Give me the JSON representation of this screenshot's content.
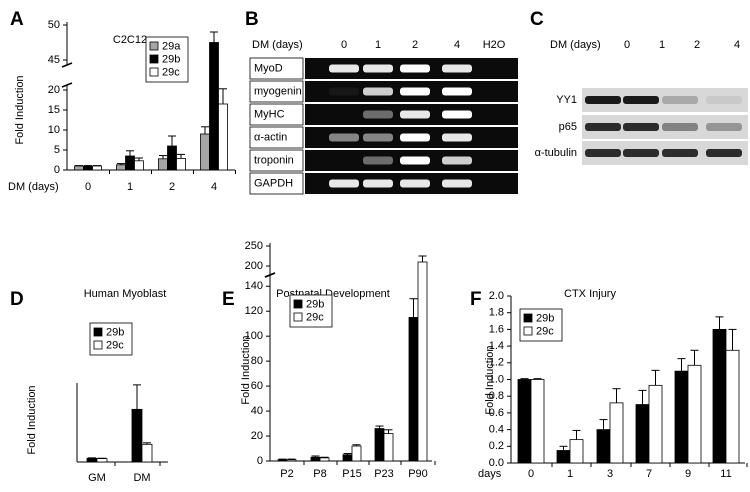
{
  "chart_data": [
    {
      "type": "bar",
      "panel": "A",
      "title": "C2C12",
      "ylabel": "Fold Induction",
      "xlabel": "DM (days)",
      "categories": [
        "0",
        "1",
        "2",
        "4"
      ],
      "ylim": [
        0,
        50
      ],
      "ybreak": [
        20,
        45
      ],
      "yticks": [
        0,
        5,
        10,
        15,
        20,
        45,
        50
      ],
      "series": [
        {
          "name": "29a",
          "color": "#a6a6a6",
          "values": [
            1,
            1.3,
            2.8,
            9
          ],
          "errors": [
            0.1,
            0.3,
            0.8,
            1.8
          ]
        },
        {
          "name": "29b",
          "color": "#000000",
          "values": [
            1,
            3.5,
            6,
            47.5
          ],
          "errors": [
            0.1,
            1.3,
            2.5,
            1.5
          ]
        },
        {
          "name": "29c",
          "color": "#ffffff",
          "values": [
            1,
            2.3,
            2.9,
            16.5
          ],
          "errors": [
            0.1,
            0.7,
            1,
            4.5
          ]
        }
      ]
    },
    {
      "type": "bar",
      "panel": "D",
      "title": "Human Myoblast",
      "ylabel": "Fold Induction",
      "categories": [
        "GM",
        "DM"
      ],
      "ylim": [
        0,
        21
      ],
      "series": [
        {
          "name": "29b",
          "color": "#000000",
          "values": [
            1,
            14
          ],
          "errors": [
            0.1,
            6.5
          ]
        },
        {
          "name": "29c",
          "color": "#ffffff",
          "values": [
            0.9,
            4.7
          ],
          "errors": [
            0.1,
            0.4
          ]
        }
      ]
    },
    {
      "type": "bar",
      "panel": "E",
      "title": "Postnatal Development",
      "ylabel": "Fold Induction",
      "categories": [
        "P2",
        "P8",
        "P15",
        "P23",
        "P90"
      ],
      "ylim": [
        0,
        250
      ],
      "ybreak": [
        145,
        190
      ],
      "yticks": [
        0,
        20,
        40,
        60,
        80,
        100,
        120,
        140,
        200,
        250
      ],
      "series": [
        {
          "name": "29b",
          "color": "#000000",
          "values": [
            1,
            3,
            5,
            26,
            115
          ],
          "errors": [
            0.5,
            1,
            1,
            2,
            15
          ]
        },
        {
          "name": "29c",
          "color": "#ffffff",
          "values": [
            1,
            2.5,
            12,
            22,
            210
          ],
          "errors": [
            0.5,
            0.5,
            1,
            3,
            15
          ]
        }
      ]
    },
    {
      "type": "bar",
      "panel": "F",
      "title": "CTX Injury",
      "ylabel": "Fold Induction",
      "xlabel": "days",
      "categories": [
        "0",
        "1",
        "3",
        "7",
        "9",
        "11"
      ],
      "ylim": [
        0,
        2
      ],
      "yticks": [
        {
          "value": 0,
          "label": "0.0"
        },
        {
          "value": 0.2,
          "label": "0.2"
        },
        {
          "value": 0.4,
          "label": "0.4"
        },
        {
          "value": 0.6,
          "label": "0.6"
        },
        {
          "value": 0.8,
          "label": "0.8"
        },
        {
          "value": 1,
          "label": "1.0"
        },
        {
          "value": 1.2,
          "label": "1.2"
        },
        {
          "value": 1.4,
          "label": "1.4"
        },
        {
          "value": 1.6,
          "label": "1.6"
        },
        {
          "value": 1.8,
          "label": "1.8"
        },
        {
          "value": 2,
          "label": "2.0"
        }
      ],
      "series": [
        {
          "name": "29b",
          "color": "#000000",
          "values": [
            1,
            0.15,
            0.4,
            0.7,
            1.1,
            1.6
          ],
          "errors": [
            0.01,
            0.05,
            0.12,
            0.17,
            0.15,
            0.15
          ]
        },
        {
          "name": "29c",
          "color": "#ffffff",
          "values": [
            1,
            0.28,
            0.72,
            0.93,
            1.17,
            1.35
          ],
          "errors": [
            0.01,
            0.11,
            0.17,
            0.18,
            0.18,
            0.25
          ]
        }
      ]
    }
  ],
  "blots": [
    {
      "panel": "B",
      "header": "DM (days)",
      "lanes": [
        "0",
        "1",
        "2",
        "4",
        "H2O"
      ],
      "rows": [
        "MyoD",
        "myogenin",
        "MyHC",
        "α-actin",
        "troponin",
        "GAPDH"
      ]
    },
    {
      "panel": "C",
      "header": "DM (days)",
      "lanes": [
        "0",
        "1",
        "2",
        "4"
      ],
      "rows": [
        "YY1",
        "p65",
        "α-tubulin"
      ]
    }
  ]
}
